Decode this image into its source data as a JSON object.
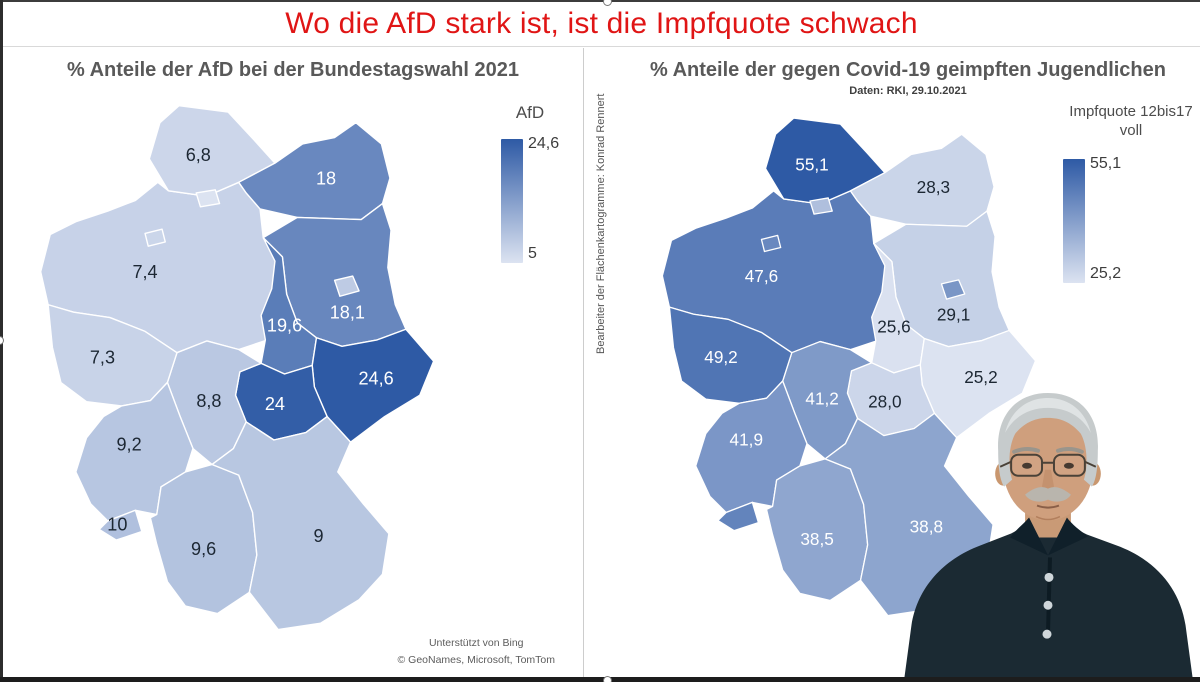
{
  "page": {
    "main_title": "Wo die AfD stark ist, ist die Impfquote schwach"
  },
  "divider": {
    "credit": "Bearbeiter der Flächenkartogramme: Konrad Rennert"
  },
  "left_panel": {
    "title": "% Anteile der AfD bei der Bundestagswahl 2021",
    "legend_title": "AfD",
    "legend_max": "24,6",
    "legend_min": "5",
    "attribution_line1": "Unterstützt von Bing",
    "attribution_line2": "© GeoNames, Microsoft, TomTom"
  },
  "right_panel": {
    "title": "% Anteile der gegen Covid-19 geimpften Jugendlichen",
    "subtitle": "Daten: RKI, 29.10.2021",
    "legend_title_line1": "Impfquote 12bis17",
    "legend_title_line2": "voll",
    "legend_max": "55,1",
    "legend_min": "25,2"
  },
  "presenter": {
    "description": "Webcam overlay of presenter: older man with gray hair, glasses and gray mustache wearing a dark polo shirt"
  },
  "colors": {
    "title_red": "#e01515",
    "map_title_gray": "#595959",
    "scale_light": "#dce3f1",
    "scale_dark": "#2e5aa5",
    "label_dark": "#1c2733",
    "label_light": "#ffffff"
  },
  "chart_data": [
    {
      "type": "choropleth-map",
      "title": "% Anteile der AfD bei der Bundestagswahl 2021",
      "legend_title": "AfD",
      "legend_position": "right",
      "scale_min": 5,
      "scale_max": 24.6,
      "regions": [
        {
          "id": "NI",
          "state": "Niedersachsen",
          "label": "7,4",
          "value": 7.4
        },
        {
          "id": "SH",
          "state": "Schleswig-Holstein",
          "label": "6,8",
          "value": 6.8
        },
        {
          "id": "MV",
          "state": "Mecklenburg-Vorpommern",
          "label": "18",
          "value": 18
        },
        {
          "id": "BB",
          "state": "Brandenburg",
          "label": "18,1",
          "value": 18.1
        },
        {
          "id": "ST",
          "state": "Sachsen-Anhalt",
          "label": "19,6",
          "value": 19.6
        },
        {
          "id": "SN",
          "state": "Sachsen",
          "label": "24,6",
          "value": 24.6
        },
        {
          "id": "TH",
          "state": "Thüringen",
          "label": "24",
          "value": 24
        },
        {
          "id": "HE",
          "state": "Hessen",
          "label": "8,8",
          "value": 8.8
        },
        {
          "id": "NW",
          "state": "Nordrhein-Westfalen",
          "label": "7,3",
          "value": 7.3
        },
        {
          "id": "RP",
          "state": "Rheinland-Pfalz",
          "label": "9,2",
          "value": 9.2
        },
        {
          "id": "SL",
          "state": "Saarland",
          "label": "10",
          "value": 10
        },
        {
          "id": "BW",
          "state": "Baden-Württemberg",
          "label": "9,6",
          "value": 9.6
        },
        {
          "id": "BY",
          "state": "Bayern",
          "label": "9",
          "value": 9
        },
        {
          "id": "HH",
          "state": "Hamburg",
          "label": "",
          "value": 5,
          "value_estimated_from_color": true
        },
        {
          "id": "HB",
          "state": "Bremen",
          "label": "",
          "value": 6.9,
          "value_estimated_from_color": true
        },
        {
          "id": "BE",
          "state": "Berlin",
          "label": "",
          "value": 8.4,
          "value_estimated_from_color": true
        }
      ]
    },
    {
      "type": "choropleth-map",
      "title": "% Anteile der gegen Covid-19 geimpften Jugendlichen",
      "subtitle": "Daten: RKI, 29.10.2021",
      "legend_title": "Impfquote 12bis17 voll",
      "legend_position": "right",
      "scale_min": 25.2,
      "scale_max": 55.1,
      "regions": [
        {
          "id": "NI",
          "state": "Niedersachsen",
          "label": "47,6",
          "value": 47.6
        },
        {
          "id": "SH",
          "state": "Schleswig-Holstein",
          "label": "55,1",
          "value": 55.1
        },
        {
          "id": "MV",
          "state": "Mecklenburg-Vorpommern",
          "label": "28,3",
          "value": 28.3
        },
        {
          "id": "BB",
          "state": "Brandenburg",
          "label": "29,1",
          "value": 29.1
        },
        {
          "id": "ST",
          "state": "Sachsen-Anhalt",
          "label": "25,6",
          "value": 25.6
        },
        {
          "id": "SN",
          "state": "Sachsen",
          "label": "25,2",
          "value": 25.2
        },
        {
          "id": "TH",
          "state": "Thüringen",
          "label": "28,0",
          "value": 28
        },
        {
          "id": "HE",
          "state": "Hessen",
          "label": "41,2",
          "value": 41.2
        },
        {
          "id": "NW",
          "state": "Nordrhein-Westfalen",
          "label": "49,2",
          "value": 49.2
        },
        {
          "id": "RP",
          "state": "Rheinland-Pfalz",
          "label": "41,9",
          "value": 41.9
        },
        {
          "id": "SL",
          "state": "Saarland",
          "label": "",
          "value": 46,
          "value_estimated_from_color": true
        },
        {
          "id": "BW",
          "state": "Baden-Württemberg",
          "label": "38,5",
          "value": 38.5
        },
        {
          "id": "BY",
          "state": "Bayern",
          "label": "38,8",
          "value": 38.8
        },
        {
          "id": "HH",
          "state": "Hamburg",
          "label": "",
          "value": 33,
          "value_estimated_from_color": true
        },
        {
          "id": "HB",
          "state": "Bremen",
          "label": "",
          "value": 45,
          "value_estimated_from_color": true
        },
        {
          "id": "BE",
          "state": "Berlin",
          "label": "",
          "value": 42,
          "value_estimated_from_color": true
        }
      ]
    }
  ]
}
